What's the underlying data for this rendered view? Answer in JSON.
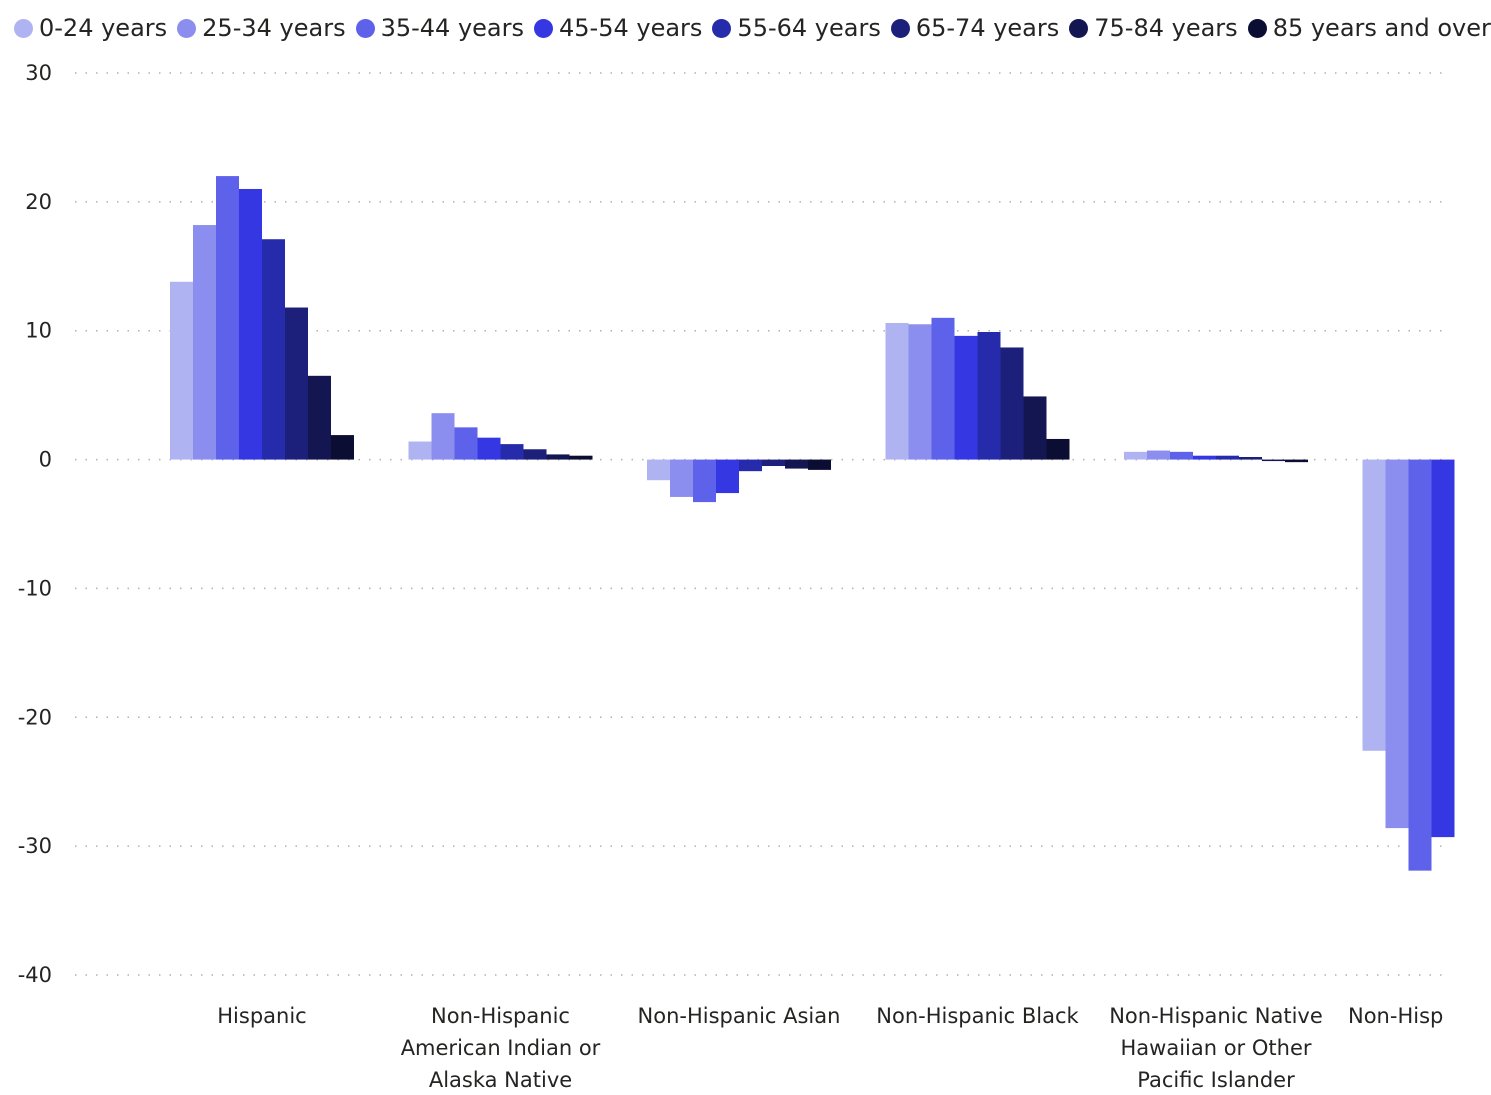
{
  "chart_data": {
    "type": "bar",
    "title": "",
    "xlabel": "",
    "ylabel": "",
    "ylim": [
      -40,
      30
    ],
    "yticks": [
      30,
      20,
      10,
      0,
      -10,
      -20,
      -30,
      -40
    ],
    "grid": true,
    "legend_position": "top-left",
    "categories": [
      [
        "Hispanic"
      ],
      [
        "Non-Hispanic",
        "American Indian or",
        "Alaska Native"
      ],
      [
        "Non-Hispanic Asian"
      ],
      [
        "Non-Hispanic Black"
      ],
      [
        "Non-Hispanic Native",
        "Hawaiian or Other",
        "Pacific Islander"
      ],
      [
        "Non-Hisp"
      ]
    ],
    "series": [
      {
        "name": "0-24 years",
        "color": "#B0B3F2",
        "values": [
          13.8,
          1.4,
          -1.6,
          10.6,
          0.6,
          -22.6
        ]
      },
      {
        "name": "25-34 years",
        "color": "#8B8EEE",
        "values": [
          18.2,
          3.6,
          -2.9,
          10.5,
          0.7,
          -28.6
        ]
      },
      {
        "name": "35-44 years",
        "color": "#5E62EA",
        "values": [
          22.0,
          2.5,
          -3.3,
          11.0,
          0.6,
          -31.9
        ]
      },
      {
        "name": "45-54 years",
        "color": "#3538E2",
        "values": [
          21.0,
          1.7,
          -2.6,
          9.6,
          0.3,
          -29.3
        ]
      },
      {
        "name": "55-64 years",
        "color": "#262BAC",
        "values": [
          17.1,
          1.2,
          -0.9,
          9.9,
          0.3,
          null
        ]
      },
      {
        "name": "65-74 years",
        "color": "#1C207A",
        "values": [
          11.8,
          0.8,
          -0.5,
          8.7,
          0.2,
          null
        ]
      },
      {
        "name": "75-84 years",
        "color": "#141652",
        "values": [
          6.5,
          0.4,
          -0.7,
          4.9,
          0.0,
          null
        ]
      },
      {
        "name": "85 years and over",
        "color": "#0C0D33",
        "values": [
          1.9,
          0.3,
          -0.8,
          1.6,
          -0.2,
          null
        ]
      }
    ]
  }
}
